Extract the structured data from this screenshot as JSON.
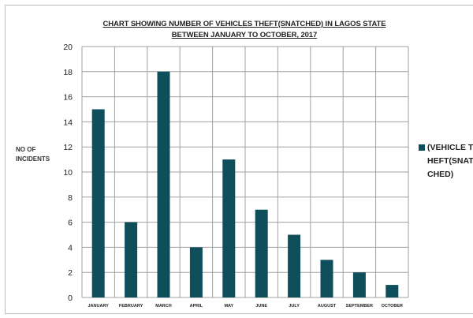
{
  "chart_data": {
    "type": "bar",
    "title_line1": "CHART SHOWING NUMBER OF VEHICLES THEFT(SNATCHED) IN LAGOS STATE",
    "title_line2": "BETWEEN JANUARY TO OCTOBER, 2017",
    "ylabel": "NO OF INCIDENTS",
    "xlabel": "",
    "categories": [
      "JANUARY",
      "FEBRUARY",
      "MARCH",
      "APRIL",
      "MAY",
      "JUNE",
      "JULY",
      "AUGUST",
      "SEPTEMBER",
      "OCTOBER"
    ],
    "series": [
      {
        "name": "(VEHICLE THEFT(SNATCHED)",
        "values": [
          15,
          6,
          18,
          4,
          11,
          7,
          5,
          3,
          2,
          1
        ]
      }
    ],
    "ylim": [
      0,
      20
    ],
    "yticks": [
      0,
      2,
      4,
      6,
      8,
      10,
      12,
      14,
      16,
      18,
      20
    ],
    "grid": true,
    "legend_position": "right",
    "bar_color": "#0f4f5c",
    "grid_color": "#a0a0a0"
  }
}
